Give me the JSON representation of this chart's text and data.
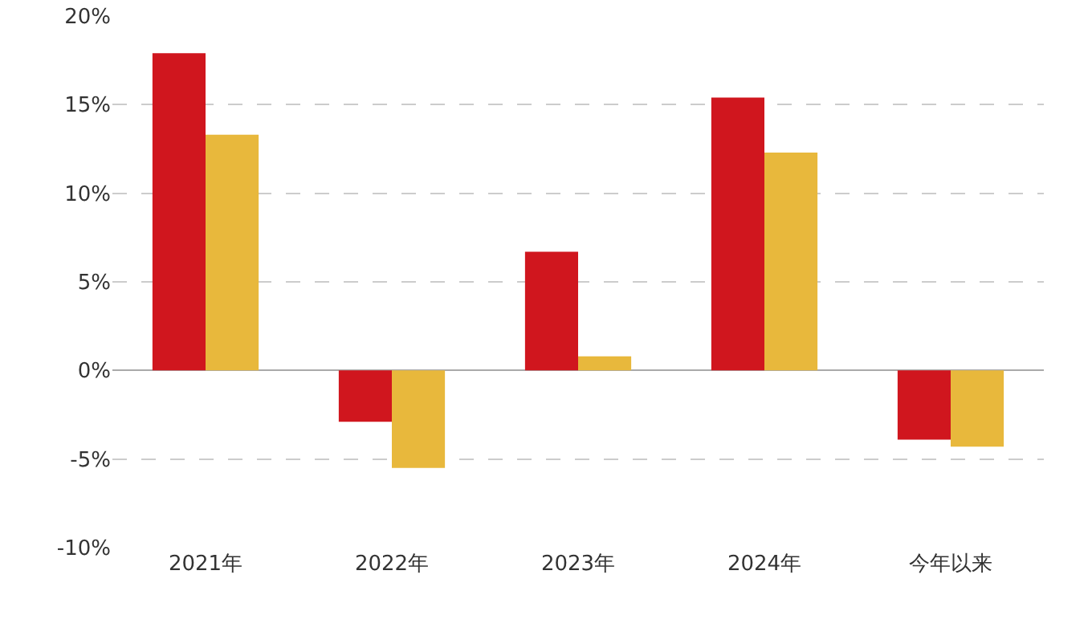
{
  "chart_data": {
    "type": "bar",
    "categories": [
      "2021年",
      "2022年",
      "2023年",
      "2024年",
      "今年以来"
    ],
    "series": [
      {
        "color": "#d0161e",
        "values": [
          17.9,
          -2.9,
          6.7,
          15.4,
          -3.9
        ]
      },
      {
        "color": "#e8b83c",
        "values": [
          13.3,
          -5.5,
          0.8,
          12.3,
          -4.3
        ]
      }
    ],
    "ylim": [
      -10,
      20
    ],
    "yticks": [
      {
        "value": -10,
        "label": "-10%"
      },
      {
        "value": -5,
        "label": "-5%"
      },
      {
        "value": 0,
        "label": "0%"
      },
      {
        "value": 5,
        "label": "5%"
      },
      {
        "value": 10,
        "label": "10%"
      },
      {
        "value": 15,
        "label": "15%"
      },
      {
        "value": 20,
        "label": "20%"
      }
    ],
    "grid": "y"
  }
}
